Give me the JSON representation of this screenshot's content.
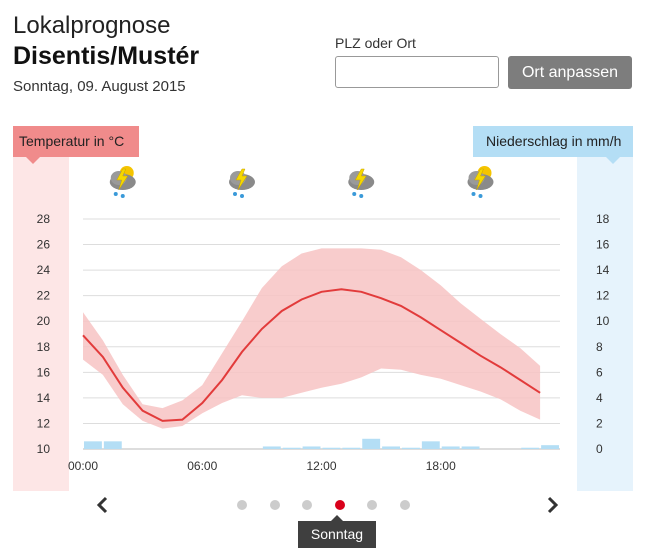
{
  "header": {
    "title_line1": "Lokalprognose",
    "title_line2": "Disentis/Mustér",
    "date": "Sonntag, 09. August 2015"
  },
  "search": {
    "label": "PLZ oder Ort",
    "value": "",
    "button_label": "Ort anpassen"
  },
  "colors": {
    "temperature": "#e23b3b",
    "temperature_band": "#f7c3c3",
    "precipitation": "#b4def5",
    "active_dot": "#d9001b"
  },
  "nav": {
    "prev_icon": "chevron-left-icon",
    "next_icon": "chevron-right-icon",
    "dot_count": 6,
    "active_index": 3,
    "active_day_label": "Sonntag"
  },
  "chart_data": {
    "type": "line",
    "left_axis_label": "Temperatur in °C",
    "right_axis_label": "Niederschlag in mm/h",
    "y_left_ticks": [
      "28",
      "26",
      "24",
      "22",
      "20",
      "18",
      "16",
      "14",
      "12",
      "10"
    ],
    "y_right_ticks": [
      "18",
      "16",
      "14",
      "12",
      "10",
      "8",
      "6",
      "4",
      "2",
      "0"
    ],
    "ylim_left": [
      10,
      28
    ],
    "ylim_right": [
      0,
      18
    ],
    "x_tick_labels": [
      "00:00",
      "06:00",
      "12:00",
      "18:00"
    ],
    "x_tick_hours": [
      0,
      6,
      12,
      18
    ],
    "xlim": [
      0,
      24
    ],
    "weather_icons": [
      {
        "hour": 2,
        "icon": "thunderstorm-rain-sun-icon"
      },
      {
        "hour": 8,
        "icon": "thunderstorm-rain-icon"
      },
      {
        "hour": 14,
        "icon": "thunderstorm-rain-icon"
      },
      {
        "hour": 20,
        "icon": "thunderstorm-rain-sun-icon"
      }
    ],
    "temperature": {
      "x": [
        0,
        1,
        2,
        3,
        4,
        5,
        6,
        7,
        8,
        9,
        10,
        11,
        12,
        13,
        14,
        15,
        16,
        17,
        18,
        19,
        20,
        21,
        22,
        23
      ],
      "y": [
        18.9,
        17.2,
        14.8,
        13.0,
        12.2,
        12.3,
        13.6,
        15.4,
        17.6,
        19.4,
        20.8,
        21.7,
        22.3,
        22.5,
        22.3,
        21.8,
        21.2,
        20.3,
        19.3,
        18.3,
        17.3,
        16.4,
        15.4,
        14.4
      ],
      "upper": [
        20.7,
        18.5,
        15.8,
        13.5,
        13.2,
        13.8,
        15.0,
        17.5,
        20.0,
        22.6,
        24.3,
        25.3,
        25.7,
        25.7,
        25.7,
        25.6,
        25.0,
        24.0,
        22.8,
        21.4,
        20.2,
        19.0,
        17.9,
        16.5
      ],
      "lower": [
        17.0,
        15.8,
        13.5,
        12.2,
        11.6,
        11.8,
        12.8,
        13.6,
        14.2,
        14.0,
        14.0,
        14.4,
        14.8,
        15.1,
        15.6,
        16.3,
        16.2,
        15.8,
        15.5,
        15.0,
        14.5,
        13.9,
        13.0,
        12.3
      ]
    },
    "precipitation": {
      "x": [
        0.5,
        1.5,
        9.5,
        10.5,
        11.5,
        12.5,
        13.5,
        14.5,
        15.5,
        16.5,
        17.5,
        18.5,
        19.5,
        22.5,
        23.5
      ],
      "values": [
        0.6,
        0.6,
        0.2,
        0.1,
        0.2,
        0.1,
        0.1,
        0.8,
        0.2,
        0.1,
        0.6,
        0.2,
        0.2,
        0.1,
        0.3
      ]
    }
  }
}
